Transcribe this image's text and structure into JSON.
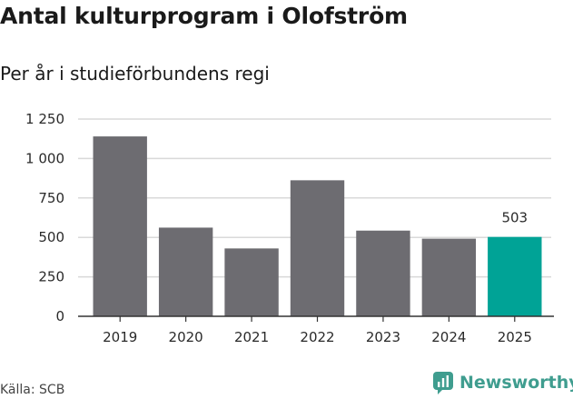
{
  "chart_data": {
    "type": "bar",
    "title": "Antal kulturprogram i Olofström",
    "subtitle": "Per år i studieförbundens regi",
    "categories": [
      "2019",
      "2020",
      "2021",
      "2022",
      "2023",
      "2024",
      "2025"
    ],
    "values": [
      1140,
      562,
      430,
      862,
      543,
      492,
      503
    ],
    "highlight_index": 6,
    "highlight_label": "503",
    "ylim": [
      0,
      1250
    ],
    "yticks": [
      0,
      250,
      500,
      750,
      1000,
      1250
    ],
    "ytick_labels": [
      "0",
      "250",
      "500",
      "750",
      "1 000",
      "1 250"
    ],
    "grid": true,
    "colors": {
      "bar": "#6d6c71",
      "highlight": "#00a396",
      "grid": "#d9d9d9",
      "axis": "#333333"
    }
  },
  "footer": {
    "source": "Källa: SCB",
    "brand": "Newsworthy",
    "brand_icon": "newsworthy-logo-icon"
  }
}
